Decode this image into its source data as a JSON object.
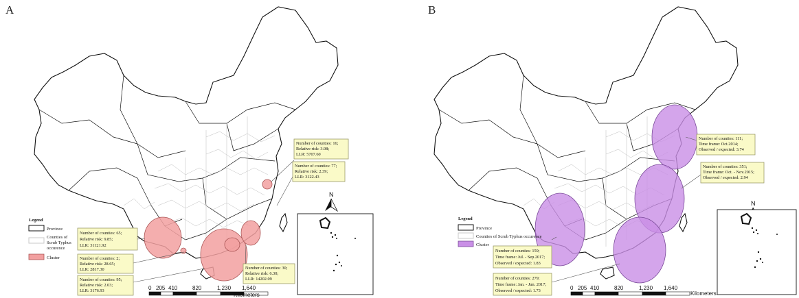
{
  "colors": {
    "cluster_a": "#f2a0a0",
    "cluster_b": "#c98fe6",
    "callout_fill": "#fafac8"
  },
  "panels": [
    {
      "label": "A",
      "legend": {
        "title": "Legend",
        "province": "Province",
        "counties_line1": "Counties of",
        "counties_line2": "Scrub Typhus",
        "counties_line3": "occurence",
        "cluster": "Cluster"
      },
      "callouts": [
        {
          "lines": [
            "Number of counties: 16;",
            "Relative risk: 3.98;",
            "LLR: 5707.60"
          ]
        },
        {
          "lines": [
            "Number of counties: 77;",
            "Relative risk: 2.39;",
            "LLR: 3122.43"
          ]
        },
        {
          "lines": [
            "Number of counties: 65;",
            "Relative risk: 9.85;",
            "LLR: 31121.92"
          ]
        },
        {
          "lines": [
            "Number of counties: 2;",
            "Relative risk: 28.65;",
            "LLR: 2817.30"
          ]
        },
        {
          "lines": [
            "Number of counties: 95;",
            "Relative risk: 2.03;",
            "LLR: 3176.93"
          ]
        },
        {
          "lines": [
            "Number of counties: 30;",
            "Relative risk: 6.30;",
            "LLR: 14202.09"
          ]
        }
      ],
      "scale": {
        "ticks": [
          "0",
          "205",
          "410",
          "820",
          "1,230",
          "1,640"
        ],
        "unit": "Kilometers"
      },
      "north": "N"
    },
    {
      "label": "B",
      "legend": {
        "title": "Legend",
        "province": "Province",
        "counties": "Counties of Scrub Typhus occurence",
        "cluster": "Cluster"
      },
      "callouts": [
        {
          "lines": [
            "Number of counties: 111;",
            "Time frame: Oct.2014;",
            "Observed / expected: 3.74"
          ]
        },
        {
          "lines": [
            "Number of counties: 351;",
            "Time frame: Oct. - Nov.2015;",
            "Observed / expected: 2.94"
          ]
        },
        {
          "lines": [
            "Number of counties: 159;",
            "Time frame: Jul. - Sep.2017;",
            "Observed / expected: 1.83"
          ]
        },
        {
          "lines": [
            "Number of counties: 279;",
            "Time frame: Jan. - Jun. 2017;",
            "Observed / expected: 1.73"
          ]
        }
      ],
      "scale": {
        "ticks": [
          "0",
          "205",
          "410",
          "820",
          "1,230",
          "1,640"
        ],
        "unit": "Kilometers"
      },
      "north": "N"
    }
  ]
}
